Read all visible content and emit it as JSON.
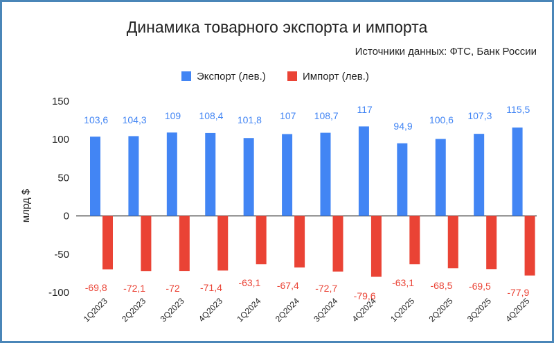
{
  "chart_data": {
    "type": "bar",
    "title": "Динамика товарного экспорта и импорта",
    "subtitle": "Источники данных: ФТС, Банк России",
    "ylabel": "млрд $",
    "xlabel": "",
    "ylim": [
      -100,
      150
    ],
    "yticks": [
      150,
      100,
      50,
      0,
      -50,
      -100
    ],
    "grid": false,
    "legend_position": "top",
    "categories": [
      "1Q2023",
      "2Q2023",
      "3Q2023",
      "4Q2023",
      "1Q2024",
      "2Q2024",
      "3Q2024",
      "4Q2024",
      "1Q2025",
      "2Q2025",
      "3Q2025",
      "4Q2025"
    ],
    "series": [
      {
        "name": "Экспорт (лев.)",
        "color": "#4285f4",
        "values": [
          103.6,
          104.3,
          109,
          108.4,
          101.8,
          107,
          108.7,
          117,
          94.9,
          100.6,
          107.3,
          115.5
        ],
        "labels": [
          "103,6",
          "104,3",
          "109",
          "108,4",
          "101,8",
          "107",
          "108,7",
          "117",
          "94,9",
          "100,6",
          "107,3",
          "115,5"
        ]
      },
      {
        "name": "Импорт (лев.)",
        "color": "#ea4335",
        "values": [
          -69.8,
          -72.1,
          -72,
          -71.4,
          -63.1,
          -67.4,
          -72.7,
          -79.6,
          -63.1,
          -68.5,
          -69.5,
          -77.9
        ],
        "labels": [
          "-69,8",
          "-72,1",
          "-72",
          "-71,4",
          "-63,1",
          "-67,4",
          "-72,7",
          "-79,6",
          "-63,1",
          "-68,5",
          "-69,5",
          "-77,9"
        ]
      }
    ]
  }
}
